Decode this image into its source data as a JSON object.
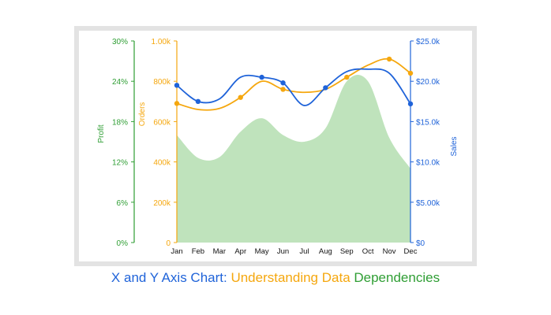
{
  "colors": {
    "profit": "#2f9e34",
    "orders": "#f5a70e",
    "sales": "#1f63d9",
    "area_fill": "#bfe3bc",
    "frame": "#e3e3e3",
    "month_text": "#111111"
  },
  "caption": {
    "part1": "X and Y Axis Chart: ",
    "part2": "Understanding Data ",
    "part3": "Dependencies"
  },
  "chart_data": {
    "type": "line",
    "categories": [
      "Jan",
      "Feb",
      "Mar",
      "Apr",
      "May",
      "Jun",
      "Jul",
      "Aug",
      "Sep",
      "Oct",
      "Nov",
      "Dec"
    ],
    "axes": {
      "profit": {
        "label": "Profit",
        "ticks": [
          "0%",
          "6%",
          "12%",
          "18%",
          "24%",
          "30%"
        ],
        "range": [
          0,
          30
        ],
        "unit": "%"
      },
      "orders": {
        "label": "Orders",
        "ticks": [
          "0",
          "200k",
          "400k",
          "600k",
          "800k",
          "1.00k"
        ],
        "range": [
          0,
          1000
        ],
        "unit": "k"
      },
      "sales": {
        "label": "Sales",
        "ticks": [
          "$0",
          "$5.00k",
          "$10.0k",
          "$15.0k",
          "$20.0k",
          "$25.0k"
        ],
        "range": [
          0,
          25
        ],
        "unit": "$k"
      }
    },
    "series": [
      {
        "type": "area",
        "axis": "profit",
        "values": [
          16,
          12.6,
          12.7,
          16.5,
          18.5,
          16,
          15,
          17,
          24,
          24,
          15.6,
          11
        ]
      },
      {
        "type": "line",
        "axis": "orders",
        "marker_indices": [
          0,
          3,
          5,
          8,
          10,
          11
        ],
        "values": [
          690,
          660,
          665,
          720,
          800,
          760,
          745,
          760,
          820,
          880,
          910,
          840
        ]
      },
      {
        "type": "line",
        "axis": "sales",
        "marker_indices": [
          0,
          1,
          4,
          5,
          7,
          11
        ],
        "values": [
          19.5,
          17.5,
          17.8,
          20.5,
          20.5,
          19.8,
          17.0,
          19.2,
          21.2,
          21.5,
          21.0,
          17.2
        ]
      }
    ]
  }
}
